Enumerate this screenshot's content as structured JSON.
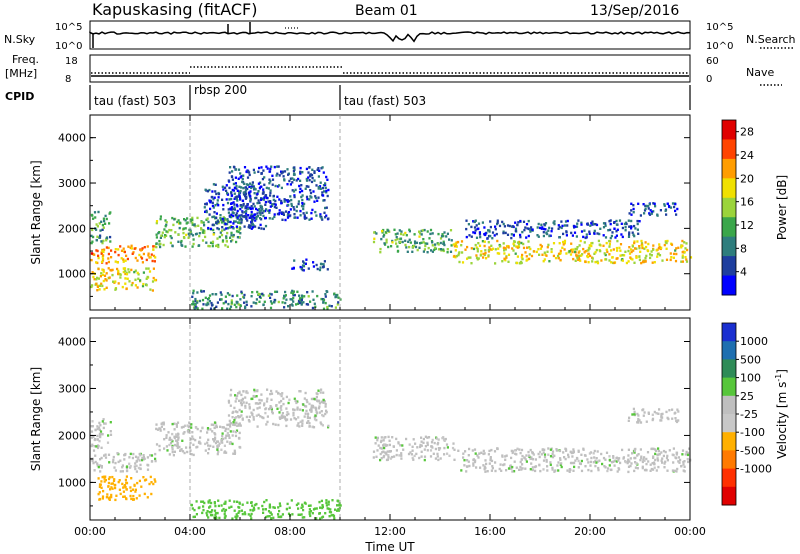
{
  "header": {
    "station": "Kapuskasing (fitACF)",
    "beam": "Beam 01",
    "date": "13/Sep/2016"
  },
  "strip_labels": {
    "nsky": "N.Sky",
    "nsky_ticks": [
      "10^5",
      "10^0"
    ],
    "nsearch": "N.Search",
    "nsearch_ticks": [
      "10^5",
      "10^0"
    ],
    "freq": "Freq.",
    "freq_unit": "[MHz]",
    "freq_ticks": [
      "18",
      "8"
    ],
    "nave": "Nave",
    "nave_ticks": [
      "60",
      "0"
    ],
    "cpid": "CPID"
  },
  "cpid_segments": [
    {
      "label": "tau (fast) 503",
      "start_h": 0,
      "end_h": 4
    },
    {
      "label": "rbsp 200",
      "start_h": 4,
      "end_h": 10
    },
    {
      "label": "tau (fast) 503",
      "start_h": 10,
      "end_h": 24
    }
  ],
  "colors": {
    "power_scale": [
      "#0000ff",
      "#1e3e9e",
      "#2e7d7d",
      "#3aa64a",
      "#9bd43b",
      "#f0e000",
      "#ff9d00",
      "#ff4400",
      "#e00000"
    ],
    "velocity_scale": [
      "#1a2fd0",
      "#1e6fb0",
      "#2e8b57",
      "#57c63b",
      "#bfbfbf",
      "#c8c8c8",
      "#ffb000",
      "#ff7a00",
      "#ff3000",
      "#e00000"
    ]
  },
  "chart_data": [
    {
      "type": "heatmap",
      "name": "power",
      "xlabel": "Time UT",
      "ylabel": "Slant Range [km]",
      "x_ticks": [
        "00:00",
        "04:00",
        "08:00",
        "12:00",
        "16:00",
        "20:00",
        "00:00"
      ],
      "xlim": [
        0,
        24
      ],
      "y_ticks": [
        "1000",
        "2000",
        "3000",
        "4000"
      ],
      "ylim": [
        200,
        4500
      ],
      "colorbar_label": "Power [dB]",
      "colorbar_ticks": [
        "4",
        "8",
        "12",
        "16",
        "20",
        "24",
        "28"
      ],
      "colorbar_range": [
        0,
        30
      ],
      "regions": [
        {
          "t0": 0.0,
          "t1": 2.6,
          "r0": 1250,
          "r1": 1650,
          "value": 22
        },
        {
          "t0": 0.0,
          "t1": 2.6,
          "r0": 650,
          "r1": 1150,
          "value": 18
        },
        {
          "t0": 0.0,
          "t1": 0.8,
          "r0": 1700,
          "r1": 2400,
          "value": 10
        },
        {
          "t0": 2.6,
          "t1": 6.0,
          "r0": 1600,
          "r1": 2300,
          "value": 12
        },
        {
          "t0": 4.5,
          "t1": 7.0,
          "r0": 2000,
          "r1": 3000,
          "value": 5
        },
        {
          "t0": 5.5,
          "t1": 9.5,
          "r0": 2200,
          "r1": 3400,
          "value": 5
        },
        {
          "t0": 8.0,
          "t1": 9.5,
          "r0": 1100,
          "r1": 1350,
          "value": 6
        },
        {
          "t0": 4.0,
          "t1": 10.0,
          "r0": 250,
          "r1": 650,
          "value": 9
        },
        {
          "t0": 11.3,
          "t1": 14.5,
          "r0": 1500,
          "r1": 2000,
          "value": 12
        },
        {
          "t0": 14.5,
          "t1": 24.0,
          "r0": 1250,
          "r1": 1750,
          "value": 18
        },
        {
          "t0": 15.0,
          "t1": 22.0,
          "r0": 1800,
          "r1": 2200,
          "value": 5
        },
        {
          "t0": 21.5,
          "t1": 23.5,
          "r0": 2300,
          "r1": 2600,
          "value": 5
        }
      ]
    },
    {
      "type": "heatmap",
      "name": "velocity",
      "xlabel": "Time UT",
      "ylabel": "Slant Range [km]",
      "x_ticks": [
        "00:00",
        "04:00",
        "08:00",
        "12:00",
        "16:00",
        "20:00",
        "00:00"
      ],
      "xlim": [
        0,
        24
      ],
      "y_ticks": [
        "1000",
        "2000",
        "3000",
        "4000"
      ],
      "ylim": [
        200,
        4500
      ],
      "colorbar_label": "Velocity [m s",
      "colorbar_label_sup": "-1",
      "colorbar_label_end": "]",
      "colorbar_ticks": [
        "1000",
        "500",
        "100",
        "25",
        "-25",
        "-100",
        "-500",
        "-1000"
      ],
      "regions": [
        {
          "t0": 0.0,
          "t1": 2.6,
          "r0": 1250,
          "r1": 1650,
          "value": 0
        },
        {
          "t0": 0.3,
          "t1": 2.6,
          "r0": 650,
          "r1": 1150,
          "value": -300
        },
        {
          "t0": 0.0,
          "t1": 0.8,
          "r0": 1700,
          "r1": 2400,
          "value": 0
        },
        {
          "t0": 2.6,
          "t1": 6.0,
          "r0": 1600,
          "r1": 2300,
          "value": 0
        },
        {
          "t0": 5.5,
          "t1": 9.5,
          "r0": 2200,
          "r1": 3000,
          "value": 0
        },
        {
          "t0": 4.0,
          "t1": 10.0,
          "r0": 250,
          "r1": 650,
          "value": 60
        },
        {
          "t0": 11.3,
          "t1": 14.5,
          "r0": 1500,
          "r1": 2000,
          "value": 0
        },
        {
          "t0": 14.5,
          "t1": 24.0,
          "r0": 1250,
          "r1": 1750,
          "value": 0
        },
        {
          "t0": 21.5,
          "t1": 23.5,
          "r0": 2300,
          "r1": 2600,
          "value": 0
        }
      ]
    }
  ]
}
